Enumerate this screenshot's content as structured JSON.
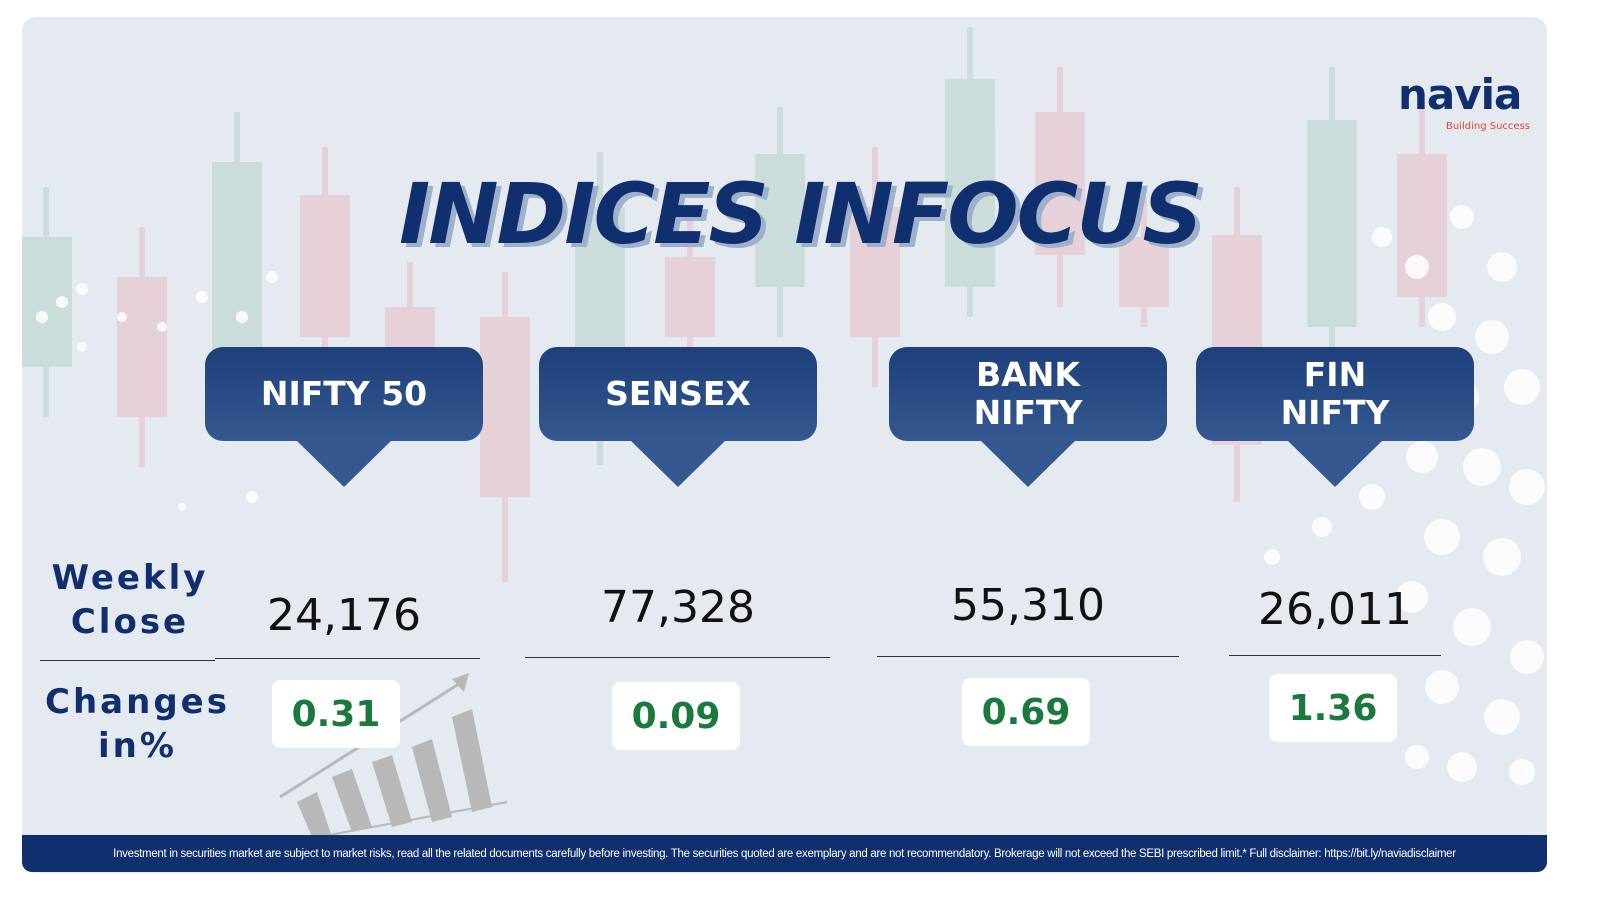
{
  "logo": {
    "name": "navia",
    "tagline": "Building Success"
  },
  "title": "INDICES INFOCUS",
  "row_labels": {
    "weekly_close": "Weekly\nClose",
    "changes": "Changes\nin%"
  },
  "indices": [
    {
      "name": "NIFTY 50",
      "weekly_close": "24,176",
      "change": "0.31"
    },
    {
      "name": "SENSEX",
      "weekly_close": "77,328",
      "change": "0.09"
    },
    {
      "name": "BANK\nNIFTY",
      "weekly_close": "55,310",
      "change": "0.69"
    },
    {
      "name": "FIN\nNIFTY",
      "weekly_close": "26,011",
      "change": "1.36"
    }
  ],
  "disclaimer": "Investment in securities market are subject to market risks, read all the related documents carefully before investing. The securities quoted are exemplary and are not recommendatory. Brokerage will not exceed the SEBI prescribed limit.* Full disclaimer: https://bit.ly/naviadisclaimer"
}
